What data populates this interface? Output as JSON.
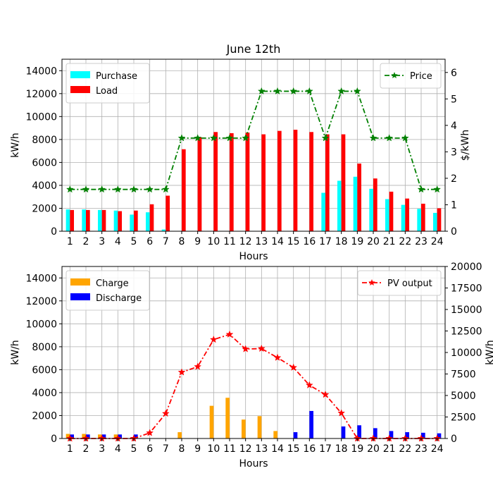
{
  "chart_data": [
    {
      "type": "bar",
      "title": "June 12th",
      "xlabel": "Hours",
      "ylabel": "kW/h",
      "y2label": "$/kWh",
      "categories": [
        "1",
        "2",
        "3",
        "4",
        "5",
        "6",
        "7",
        "8",
        "9",
        "10",
        "11",
        "12",
        "13",
        "14",
        "15",
        "16",
        "17",
        "18",
        "19",
        "20",
        "21",
        "22",
        "23",
        "24"
      ],
      "ylim": [
        0,
        15000
      ],
      "yticks": [
        0,
        2000,
        4000,
        6000,
        8000,
        10000,
        12000,
        14000
      ],
      "y2lim": [
        0,
        6.5
      ],
      "y2ticks": [
        0,
        1,
        2,
        3,
        4,
        5,
        6
      ],
      "grid": true,
      "series": [
        {
          "name": "Purchase",
          "kind": "bar",
          "axis": "left",
          "color": "#00ffff",
          "values": [
            1900,
            1900,
            1850,
            1800,
            1450,
            1650,
            150,
            0,
            0,
            0,
            0,
            0,
            0,
            0,
            0,
            0,
            3350,
            4400,
            4750,
            3700,
            2800,
            2300,
            1950,
            1600
          ]
        },
        {
          "name": "Load",
          "kind": "bar",
          "axis": "left",
          "color": "#ff0000",
          "values": [
            1850,
            1850,
            1850,
            1750,
            1800,
            2350,
            3100,
            7150,
            8200,
            8650,
            8550,
            8600,
            8450,
            8750,
            8850,
            8650,
            8450,
            8450,
            5900,
            4600,
            3450,
            2850,
            2400,
            2000
          ]
        },
        {
          "name": "Price",
          "kind": "line",
          "axis": "right",
          "color": "#008000",
          "linestyle": "dash-dot",
          "marker": "star",
          "values": [
            1.58,
            1.58,
            1.58,
            1.58,
            1.58,
            1.58,
            1.58,
            3.52,
            3.52,
            3.52,
            3.52,
            3.52,
            5.29,
            5.29,
            5.29,
            5.29,
            3.52,
            5.29,
            5.29,
            3.52,
            3.52,
            3.52,
            1.58,
            1.58
          ]
        }
      ],
      "legends": [
        {
          "placement": "upper-left",
          "entries": [
            "Purchase",
            "Load"
          ]
        },
        {
          "placement": "upper-right",
          "entries": [
            "Price"
          ]
        }
      ]
    },
    {
      "type": "bar",
      "title": "",
      "xlabel": "Hours",
      "ylabel": "kW/h",
      "y2label": "kW/h",
      "categories": [
        "1",
        "2",
        "3",
        "4",
        "5",
        "6",
        "7",
        "8",
        "9",
        "10",
        "11",
        "12",
        "13",
        "14",
        "15",
        "16",
        "17",
        "18",
        "19",
        "20",
        "21",
        "22",
        "23",
        "24"
      ],
      "ylim": [
        0,
        15000
      ],
      "yticks": [
        0,
        2000,
        4000,
        6000,
        8000,
        10000,
        12000,
        14000
      ],
      "y2lim": [
        0,
        20000
      ],
      "y2ticks": [
        0,
        2500,
        5000,
        7500,
        10000,
        12500,
        15000,
        17500,
        20000
      ],
      "grid": true,
      "series": [
        {
          "name": "Charge",
          "kind": "bar",
          "axis": "left",
          "color": "#ffa500",
          "values": [
            400,
            400,
            350,
            350,
            0,
            0,
            0,
            550,
            0,
            2850,
            3550,
            1650,
            1950,
            650,
            0,
            0,
            0,
            0,
            0,
            0,
            0,
            0,
            0,
            0
          ]
        },
        {
          "name": "Discharge",
          "kind": "bar",
          "axis": "left",
          "color": "#0000ff",
          "values": [
            350,
            350,
            350,
            350,
            350,
            0,
            0,
            0,
            0,
            0,
            0,
            0,
            0,
            0,
            550,
            2400,
            0,
            1050,
            1150,
            900,
            650,
            550,
            500,
            450
          ]
        },
        {
          "name": "PV output",
          "kind": "line",
          "axis": "right",
          "color": "#ff0000",
          "linestyle": "dash-dot",
          "marker": "star",
          "values": [
            0,
            0,
            0,
            0,
            0,
            650,
            2900,
            7700,
            8350,
            11500,
            12100,
            10400,
            10450,
            9400,
            8250,
            6200,
            5100,
            2950,
            0,
            0,
            0,
            0,
            0,
            0
          ]
        }
      ],
      "legends": [
        {
          "placement": "upper-left",
          "entries": [
            "Charge",
            "Discharge"
          ]
        },
        {
          "placement": "upper-right",
          "entries": [
            "PV output"
          ]
        }
      ]
    }
  ]
}
